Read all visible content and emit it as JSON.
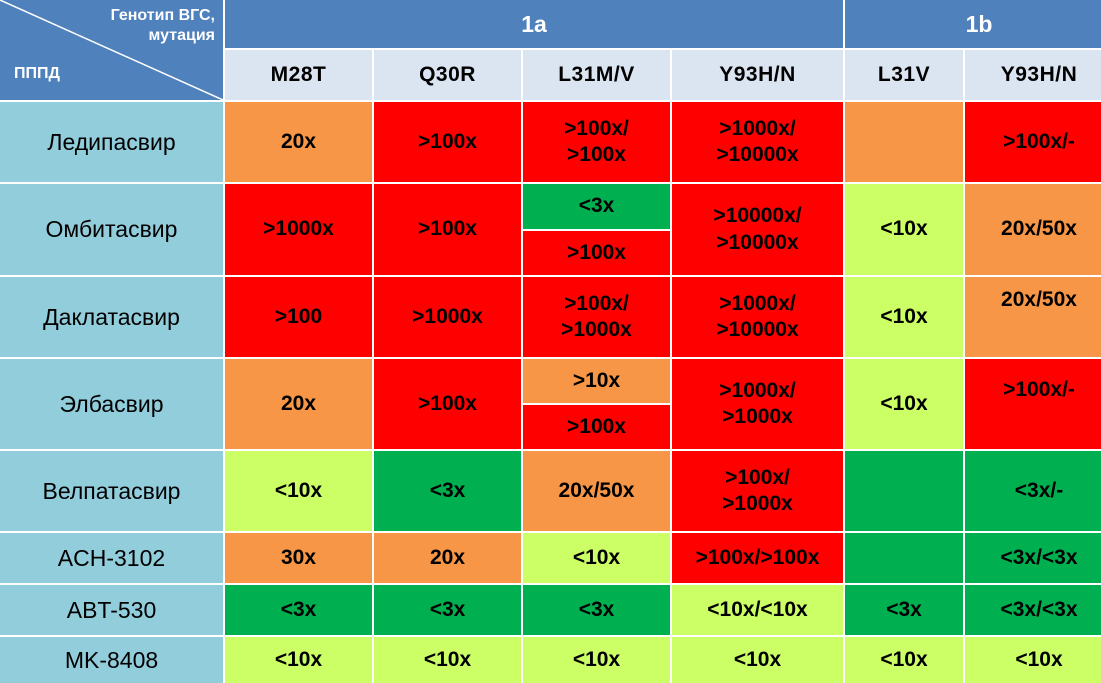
{
  "corner": {
    "top_right_line1": "Генотип ВГС,",
    "top_right_line2": "мутация",
    "bottom_left": "ПППД"
  },
  "genotypes": {
    "g1a": "1a",
    "g1b": "1b"
  },
  "mutations": [
    "M28T",
    "Q30R",
    "L31M/V",
    "Y93H/N",
    "L31V",
    "Y93H/N"
  ],
  "drugs": [
    "Ледипасвир",
    "Омбитасвир",
    "Даклатасвир",
    "Элбасвир",
    "Велпатасвир",
    "ACH-3102",
    "ABT-530",
    "MK-8408"
  ],
  "colors": {
    "orange": "#f79646",
    "red": "#ff0000",
    "green": "#00b050",
    "lime": "#ccff66",
    "header_blue": "#4f81bd",
    "drug_cell": "#92cddc",
    "mutation_header": "#dbe5f1"
  },
  "cells": {
    "ledipasvir": {
      "m28t": "20x",
      "q30r": ">100x",
      "l31mv": ">100x/\n>100x",
      "y93hn_1a": ">1000x/\n>10000x",
      "l31v": "",
      "y93hn_1b": ">100x/-"
    },
    "ombitasvir": {
      "m28t": ">1000x",
      "q30r": ">100x",
      "l31mv_a": "<3x",
      "l31mv_b": ">100x",
      "y93hn_1a": ">10000x/\n>10000x",
      "l31v": "<10x",
      "y93hn_1b": "20x/50x"
    },
    "daclatasvir": {
      "m28t": ">100",
      "q30r": ">1000x",
      "l31mv": ">100x/\n>1000x",
      "y93hn_1a": ">1000x/\n>10000x",
      "l31v": "<10x",
      "y93hn_1b": "20x/50x"
    },
    "elbasvir": {
      "m28t": "20x",
      "q30r": ">100x",
      "l31mv_a": ">10x",
      "l31mv_b": ">100x",
      "y93hn_1a": ">1000x/\n>1000x",
      "l31v": "<10x",
      "y93hn_1b": ">100x/-"
    },
    "velpatasvir": {
      "m28t": "<10x",
      "q30r": "<3x",
      "l31mv": "20x/50x",
      "y93hn_1a": ">100x/\n>1000x",
      "l31v": "",
      "y93hn_1b": "<3x/-"
    },
    "ach3102": {
      "m28t": "30x",
      "q30r": "20x",
      "l31mv": "<10x",
      "y93hn_1a": ">100x/>100x",
      "l31v": "",
      "y93hn_1b": "<3x/<3x"
    },
    "abt530": {
      "m28t": "<3x",
      "q30r": "<3x",
      "l31mv": "<3x",
      "y93hn_1a": "<10x/<10x",
      "l31v": "<3x",
      "y93hn_1b": "<3x/<3x"
    },
    "mk8408": {
      "m28t": "<10x",
      "q30r": "<10x",
      "l31mv": "<10x",
      "y93hn_1a": "<10x",
      "l31v": "<10x",
      "y93hn_1b": "<10x"
    }
  }
}
